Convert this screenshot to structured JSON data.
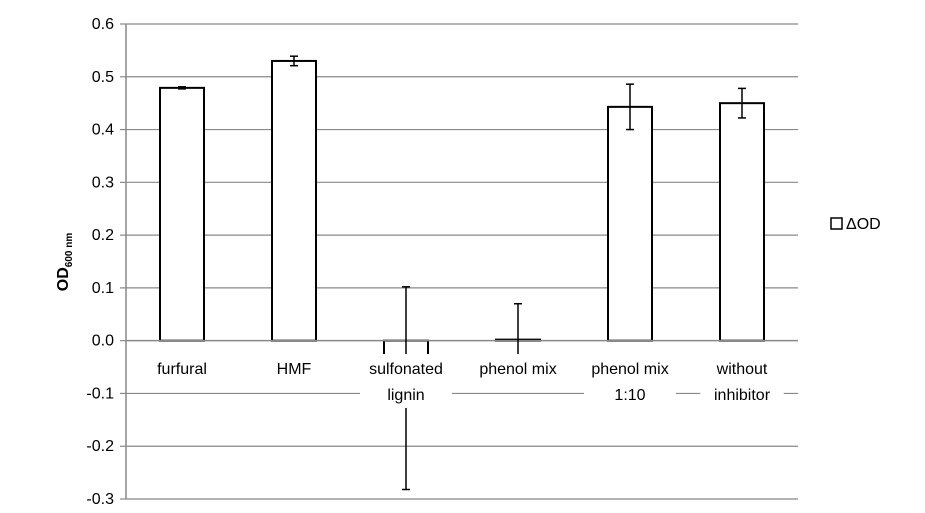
{
  "chart_data": {
    "type": "bar",
    "categories": [
      [
        "furfural"
      ],
      [
        "HMF"
      ],
      [
        "sulfonated",
        "lignin"
      ],
      [
        "phenol mix"
      ],
      [
        "phenol mix",
        "1:10"
      ],
      [
        "without",
        "inhibitor"
      ]
    ],
    "series": [
      {
        "name": "ΔOD",
        "values": [
          0.479,
          0.53,
          -0.09,
          0.002,
          0.443,
          0.45
        ],
        "errors": [
          0.002,
          0.009,
          0.192,
          0.068,
          0.043,
          0.028
        ],
        "color": "#ffffff",
        "stroke": "#000000"
      }
    ],
    "ylabel": {
      "main": "OD",
      "sub": "600 nm"
    },
    "ylim": [
      -0.3,
      0.6
    ],
    "yticks": [
      0.6,
      0.5,
      0.4,
      0.3,
      0.2,
      0.1,
      0.0,
      -0.1,
      -0.2,
      -0.3
    ],
    "ytick_labels": [
      "0.6",
      "0.5",
      "0.4",
      "0.3",
      "0.2",
      "0.1",
      "0.0",
      "-0.1",
      "-0.2",
      "-0.3"
    ],
    "grid": true,
    "legend": "right"
  }
}
